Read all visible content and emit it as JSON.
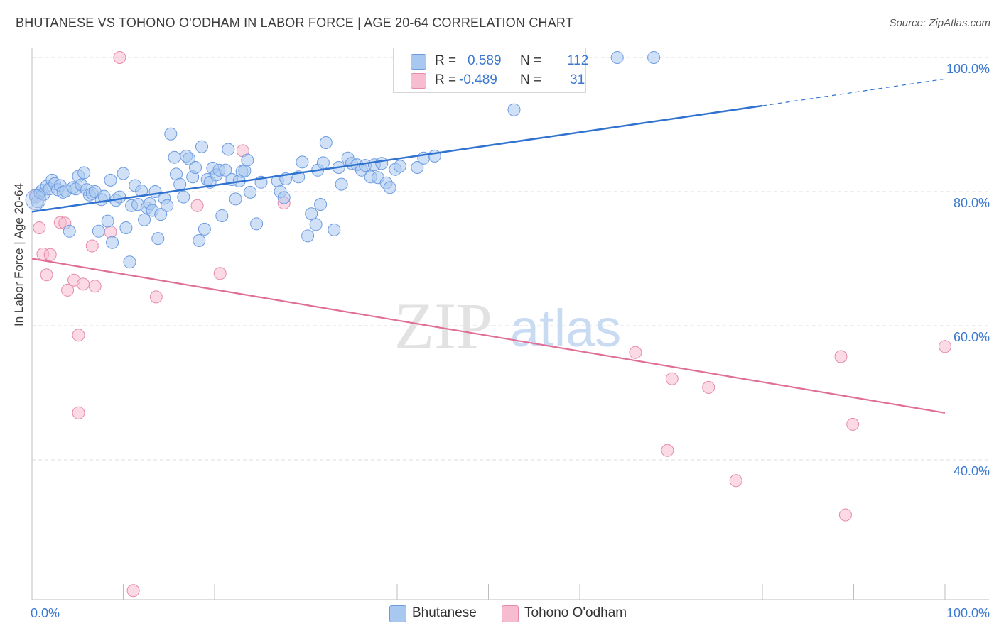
{
  "header": {
    "title": "BHUTANESE VS TOHONO O'ODHAM IN LABOR FORCE | AGE 20-64 CORRELATION CHART",
    "source": "Source: ZipAtlas.com"
  },
  "watermark": {
    "zip": "ZIP",
    "atlas": "atlas"
  },
  "legend": {
    "rows": [
      {
        "r_label": "R =",
        "r_value": "0.589",
        "n_label": "N =",
        "n_value": "112",
        "color": "#a9c8f0",
        "stroke": "#6c9be0"
      },
      {
        "r_label": "R =",
        "r_value": "-0.489",
        "n_label": "N =",
        "n_value": "31",
        "color": "#f7bcd0",
        "stroke": "#e58aab"
      }
    ]
  },
  "colors": {
    "blue_fill": "#a9c8f0",
    "blue_stroke": "#6c9be0",
    "blue_line": "#2f72d0",
    "pink_fill": "#f7bcd0",
    "pink_stroke": "#e58aab",
    "pink_line": "#e06f98",
    "axis_text": "#3a78d0",
    "grid": "#dedede"
  },
  "chart_data": {
    "type": "scatter",
    "title": "BHUTANESE VS TOHONO O'ODHAM IN LABOR FORCE | AGE 20-64 CORRELATION CHART",
    "xlabel": "",
    "ylabel": "In Labor Force | Age 20-64",
    "xlim": [
      0,
      100
    ],
    "ylim": [
      20,
      102
    ],
    "x_tick_labels": [
      "0.0%",
      "100.0%"
    ],
    "y_ticks": [
      40,
      60,
      80,
      100
    ],
    "y_tick_labels": [
      "40.0%",
      "60.0%",
      "80.0%",
      "100.0%"
    ],
    "grid": true,
    "legend_position": "bottom-center",
    "series": [
      {
        "name": "Bhutanese",
        "trend": {
          "x": [
            0,
            80,
            100
          ],
          "y": [
            77.0,
            92.8,
            96.8
          ],
          "dashed_from_x": 80
        },
        "points": [
          [
            0.4,
            79.2
          ],
          [
            0.6,
            78.5
          ],
          [
            0.9,
            79.8
          ],
          [
            1.1,
            80.2
          ],
          [
            1.3,
            79.6
          ],
          [
            1.6,
            80.8
          ],
          [
            1.9,
            80.4
          ],
          [
            2.2,
            81.7
          ],
          [
            2.5,
            81.2
          ],
          [
            2.8,
            80.3
          ],
          [
            3.1,
            80.9
          ],
          [
            3.4,
            79.9
          ],
          [
            3.7,
            80.1
          ],
          [
            4.1,
            74.1
          ],
          [
            4.5,
            80.6
          ],
          [
            4.8,
            80.4
          ],
          [
            5.1,
            82.3
          ],
          [
            5.4,
            81.0
          ],
          [
            5.7,
            82.8
          ],
          [
            6.0,
            80.3
          ],
          [
            6.3,
            79.5
          ],
          [
            6.6,
            79.7
          ],
          [
            6.9,
            80.0
          ],
          [
            7.3,
            74.1
          ],
          [
            7.6,
            78.8
          ],
          [
            7.9,
            79.3
          ],
          [
            8.3,
            75.6
          ],
          [
            8.6,
            81.7
          ],
          [
            8.8,
            72.4
          ],
          [
            9.2,
            78.7
          ],
          [
            9.6,
            79.2
          ],
          [
            10.0,
            82.7
          ],
          [
            10.3,
            74.6
          ],
          [
            10.7,
            69.5
          ],
          [
            10.9,
            77.9
          ],
          [
            11.3,
            80.9
          ],
          [
            11.6,
            78.1
          ],
          [
            12.0,
            80.1
          ],
          [
            12.3,
            75.8
          ],
          [
            12.6,
            77.6
          ],
          [
            12.9,
            78.2
          ],
          [
            13.2,
            77.2
          ],
          [
            13.5,
            80.0
          ],
          [
            13.8,
            73.0
          ],
          [
            14.1,
            76.6
          ],
          [
            14.5,
            79.0
          ],
          [
            14.8,
            77.9
          ],
          [
            15.2,
            88.6
          ],
          [
            15.6,
            85.1
          ],
          [
            15.8,
            82.6
          ],
          [
            16.2,
            81.1
          ],
          [
            16.6,
            79.2
          ],
          [
            16.9,
            85.3
          ],
          [
            17.2,
            84.9
          ],
          [
            17.6,
            82.2
          ],
          [
            17.9,
            83.6
          ],
          [
            18.3,
            72.7
          ],
          [
            18.6,
            86.7
          ],
          [
            18.9,
            74.4
          ],
          [
            19.2,
            81.8
          ],
          [
            19.5,
            81.4
          ],
          [
            19.8,
            83.5
          ],
          [
            20.2,
            82.5
          ],
          [
            20.5,
            83.2
          ],
          [
            20.8,
            76.4
          ],
          [
            21.2,
            83.2
          ],
          [
            21.5,
            86.3
          ],
          [
            21.9,
            81.8
          ],
          [
            22.3,
            78.9
          ],
          [
            22.7,
            81.6
          ],
          [
            23.0,
            83.0
          ],
          [
            23.3,
            83.1
          ],
          [
            23.6,
            84.7
          ],
          [
            23.9,
            79.9
          ],
          [
            24.6,
            75.2
          ],
          [
            25.1,
            81.4
          ],
          [
            26.9,
            81.6
          ],
          [
            27.2,
            80.0
          ],
          [
            27.6,
            79.1
          ],
          [
            27.8,
            81.9
          ],
          [
            29.2,
            82.2
          ],
          [
            29.6,
            84.4
          ],
          [
            30.2,
            73.4
          ],
          [
            30.6,
            76.7
          ],
          [
            31.1,
            75.1
          ],
          [
            31.3,
            83.2
          ],
          [
            31.6,
            78.1
          ],
          [
            31.9,
            84.3
          ],
          [
            32.2,
            87.3
          ],
          [
            33.1,
            74.3
          ],
          [
            33.6,
            83.6
          ],
          [
            33.9,
            81.1
          ],
          [
            34.6,
            85.0
          ],
          [
            35.0,
            84.2
          ],
          [
            35.6,
            84.0
          ],
          [
            36.1,
            83.2
          ],
          [
            36.5,
            83.9
          ],
          [
            37.1,
            82.2
          ],
          [
            37.5,
            84.0
          ],
          [
            37.9,
            82.1
          ],
          [
            38.3,
            84.2
          ],
          [
            38.8,
            81.3
          ],
          [
            39.2,
            80.6
          ],
          [
            39.8,
            83.3
          ],
          [
            40.3,
            83.8
          ],
          [
            42.2,
            83.6
          ],
          [
            42.9,
            85.0
          ],
          [
            44.1,
            85.3
          ],
          [
            52.8,
            92.2
          ],
          [
            59.7,
            100.0
          ],
          [
            64.1,
            100.0
          ],
          [
            68.1,
            100.0
          ]
        ]
      },
      {
        "name": "Tohono O'odham",
        "trend": {
          "x": [
            0,
            100
          ],
          "y": [
            70.0,
            47.0
          ]
        },
        "points": [
          [
            0.4,
            79.5
          ],
          [
            0.8,
            74.6
          ],
          [
            1.2,
            70.7
          ],
          [
            1.6,
            67.6
          ],
          [
            2.0,
            70.6
          ],
          [
            3.1,
            75.4
          ],
          [
            3.6,
            75.3
          ],
          [
            3.9,
            65.3
          ],
          [
            4.6,
            66.8
          ],
          [
            5.1,
            58.6
          ],
          [
            5.1,
            47.0
          ],
          [
            5.6,
            66.2
          ],
          [
            6.6,
            71.9
          ],
          [
            6.9,
            65.9
          ],
          [
            8.6,
            74.0
          ],
          [
            9.6,
            100.0
          ],
          [
            11.1,
            20.5
          ],
          [
            13.6,
            64.3
          ],
          [
            18.1,
            77.9
          ],
          [
            20.6,
            67.8
          ],
          [
            23.1,
            86.1
          ],
          [
            27.6,
            78.3
          ],
          [
            66.1,
            56.0
          ],
          [
            70.1,
            52.1
          ],
          [
            74.1,
            50.8
          ],
          [
            69.6,
            41.4
          ],
          [
            77.1,
            36.9
          ],
          [
            88.6,
            55.4
          ],
          [
            89.9,
            45.3
          ],
          [
            89.1,
            31.8
          ],
          [
            100.0,
            56.9
          ]
        ]
      }
    ]
  },
  "bottom_legend": [
    {
      "label": "Bhutanese"
    },
    {
      "label": "Tohono O'odham"
    }
  ]
}
